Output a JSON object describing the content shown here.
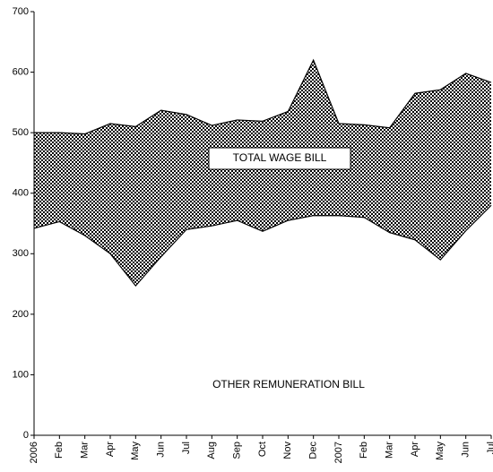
{
  "chart_data": {
    "type": "band-area",
    "categories": [
      "2006",
      "Feb",
      "Mar",
      "Apr",
      "May",
      "Jun",
      "Jul",
      "Aug",
      "Sep",
      "Oct",
      "Nov",
      "Dec",
      "2007",
      "Feb",
      "Mar",
      "Apr",
      "May",
      "Jun",
      "Jul"
    ],
    "series": [
      {
        "name": "OTHER REMUNERATION BILL",
        "color": "#000000",
        "values": [
          342,
          353,
          330,
          300,
          247,
          295,
          340,
          346,
          355,
          337,
          355,
          363,
          363,
          360,
          335,
          323,
          290,
          338,
          380
        ]
      },
      {
        "name": "TOTAL WAGE BILL",
        "color": "#000000",
        "values": [
          500,
          500,
          498,
          515,
          510,
          537,
          530,
          512,
          521,
          519,
          535,
          620,
          515,
          513,
          508,
          565,
          571,
          598,
          583
        ]
      }
    ],
    "ylim": [
      0,
      700
    ],
    "yticks": [
      0,
      100,
      200,
      300,
      400,
      500,
      600,
      700
    ],
    "grid": false
  }
}
